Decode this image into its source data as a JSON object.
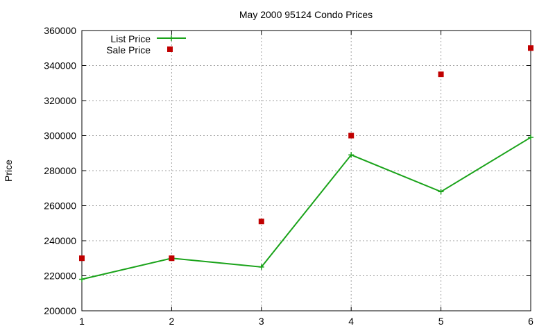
{
  "chart_data": {
    "type": "line",
    "title": "May 2000 95124 Condo Prices",
    "xlabel": "",
    "ylabel": "Price",
    "x": [
      1,
      2,
      3,
      4,
      5,
      6
    ],
    "xlim": [
      1,
      6
    ],
    "ylim": [
      200000,
      360000
    ],
    "xticks": [
      "1",
      "2",
      "3",
      "4",
      "5",
      "6"
    ],
    "yticks": [
      "200000",
      "220000",
      "240000",
      "260000",
      "280000",
      "300000",
      "320000",
      "340000",
      "360000"
    ],
    "grid": true,
    "legend_position": "top-left",
    "series": [
      {
        "name": "List Price",
        "style": "linespoints",
        "marker": "plus",
        "color": "#1aa31a",
        "values": [
          218000,
          230000,
          225000,
          289000,
          268000,
          299000
        ]
      },
      {
        "name": "Sale Price",
        "style": "points",
        "marker": "square",
        "color": "#c00000",
        "values": [
          230000,
          230000,
          251000,
          300000,
          335000,
          350000
        ]
      }
    ]
  }
}
